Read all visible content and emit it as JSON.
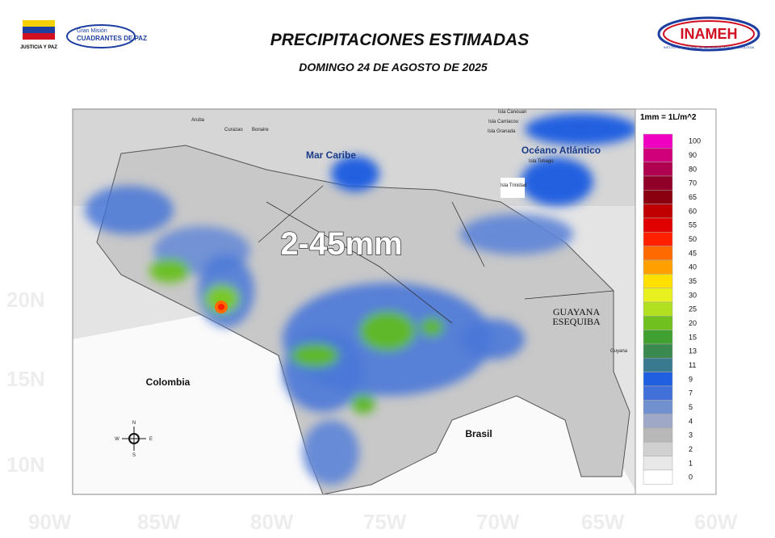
{
  "header": {
    "title": "PRECIPITACIONES ESTIMADAS",
    "subtitle": "DOMINGO 24 DE AGOSTO DE 2025",
    "logos": [
      "JUSTICIA Y PAZ",
      "Gran Misión",
      "CUADRANTES DE PAZ",
      "INAMEH",
      "INSTITUTO NACIONAL DE METEOROLOGÍA E HIDROLOGÍA"
    ]
  },
  "watermark": {
    "lat": [
      "20N",
      "15N",
      "10N"
    ],
    "lon": [
      "90W",
      "85W",
      "80W",
      "75W",
      "70W",
      "65W",
      "60W"
    ]
  },
  "map": {
    "range": "2-45mm",
    "labels": {
      "sea": [
        "Mar Caribe",
        "Océano Atlántico"
      ],
      "countries": [
        "Colombia",
        "Brasil",
        "GUAYANA",
        "ESEQUIBA"
      ],
      "islands": [
        "Aruba",
        "Curazao",
        "Bonaire",
        "Isla Canouan",
        "Isla Carriacou",
        "Isla Granada",
        "Isla Tobago",
        "Isla Trinidad",
        "Guyana"
      ]
    },
    "compass": [
      "N",
      "S",
      "E",
      "W"
    ]
  },
  "legend": {
    "title": "1mm = 1L/m^2",
    "items": [
      {
        "value": 100,
        "color": "#f000c0"
      },
      {
        "value": 90,
        "color": "#d0007a"
      },
      {
        "value": 80,
        "color": "#b00050"
      },
      {
        "value": 70,
        "color": "#900028"
      },
      {
        "value": 65,
        "color": "#8a0010"
      },
      {
        "value": 60,
        "color": "#c00000"
      },
      {
        "value": 55,
        "color": "#e00000"
      },
      {
        "value": 50,
        "color": "#ff2000"
      },
      {
        "value": 45,
        "color": "#ff6a00"
      },
      {
        "value": 40,
        "color": "#ffa000"
      },
      {
        "value": 35,
        "color": "#ffe000"
      },
      {
        "value": 30,
        "color": "#e8f020"
      },
      {
        "value": 25,
        "color": "#b0e020"
      },
      {
        "value": 20,
        "color": "#70c020"
      },
      {
        "value": 15,
        "color": "#40a030"
      },
      {
        "value": 13,
        "color": "#3a8a50"
      },
      {
        "value": 11,
        "color": "#3a7a90"
      },
      {
        "value": 9,
        "color": "#2060e0"
      },
      {
        "value": 7,
        "color": "#4070d8"
      },
      {
        "value": 5,
        "color": "#7090d0"
      },
      {
        "value": 4,
        "color": "#a0a8c8"
      },
      {
        "value": 3,
        "color": "#b8b8b8"
      },
      {
        "value": 2,
        "color": "#d0d0d0"
      },
      {
        "value": 1,
        "color": "#e8e8e8"
      },
      {
        "value": 0,
        "color": "#ffffff"
      }
    ]
  }
}
